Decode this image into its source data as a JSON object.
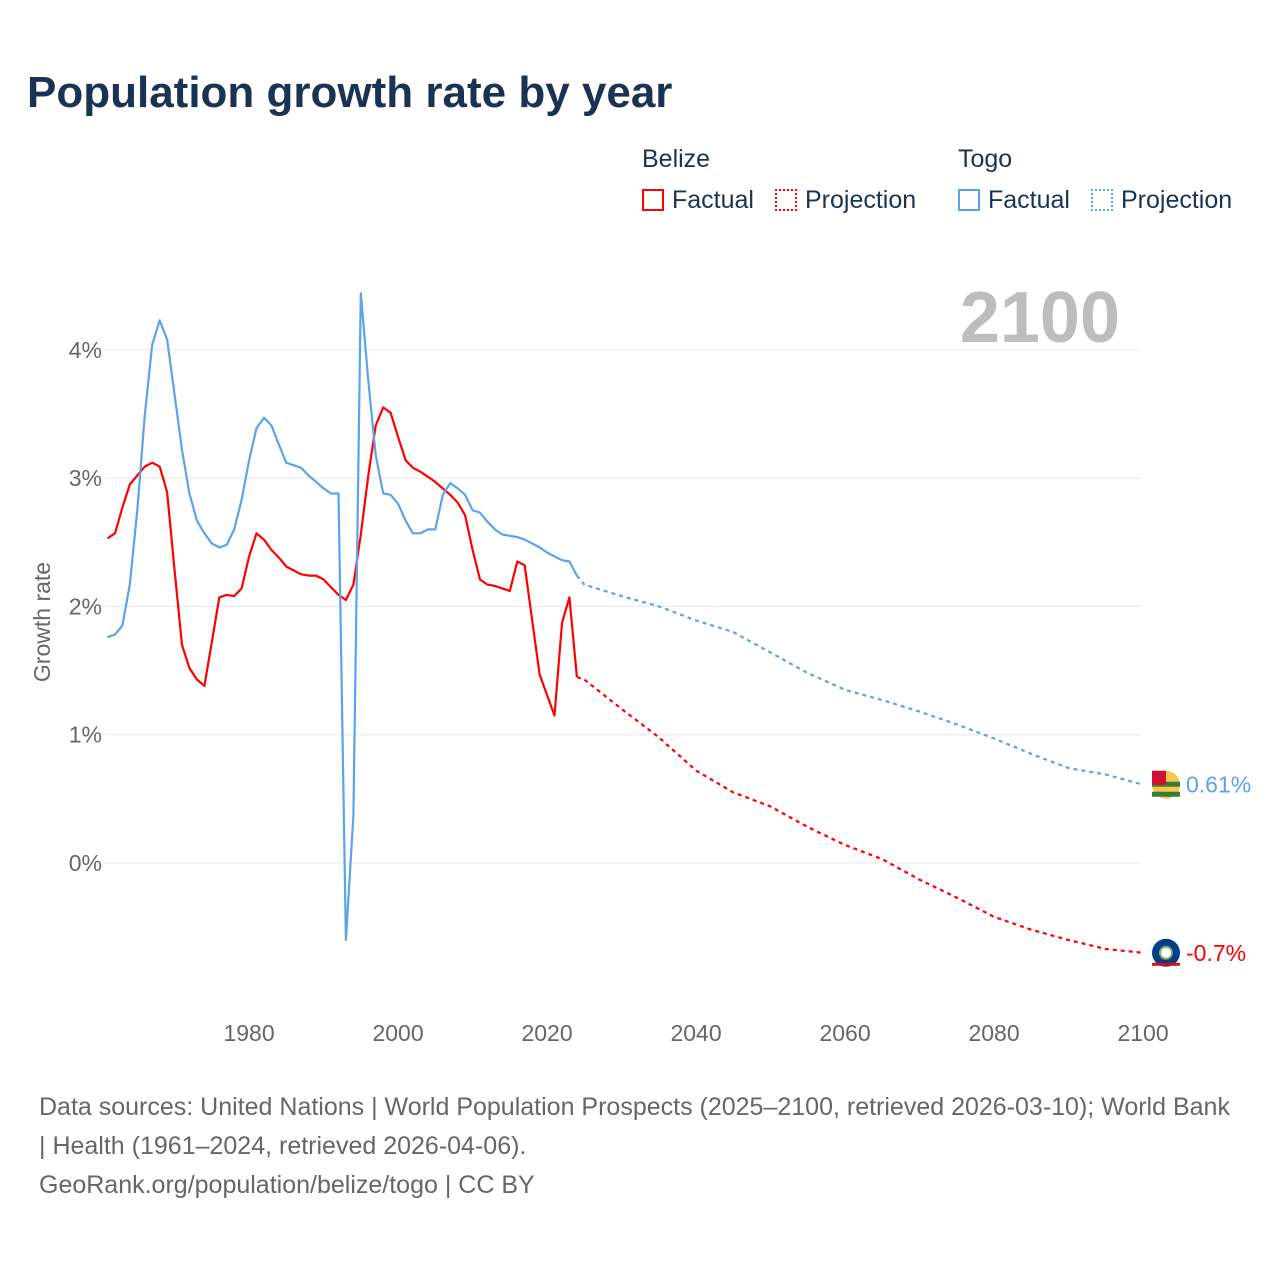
{
  "title": "Population growth rate by year",
  "legend": {
    "groups": [
      {
        "name": "Belize",
        "color": "#ff0000",
        "factual": "Factual",
        "projection": "Projection"
      },
      {
        "name": "Togo",
        "color": "#5ba4e8",
        "factual": "Factual",
        "projection": "Projection"
      }
    ]
  },
  "year_label": "2100",
  "end_labels": {
    "togo": "0.61%",
    "belize": "-0.7%"
  },
  "flags": {
    "togo": "togo-flag-icon",
    "belize": "belize-flag-icon"
  },
  "source": {
    "line1": "Data sources: United Nations | World Population Prospects (2025–2100, retrieved 2026-03-10); World Bank | Health (1961–2024, retrieved 2026-04-06).",
    "line2": "GeoRank.org/population/belize/togo | CC BY"
  },
  "chart_data": {
    "type": "line",
    "title": "Population growth rate by year",
    "xlabel": "",
    "ylabel": "Growth rate",
    "xlim": [
      1961,
      2100
    ],
    "ylim": [
      -0.9,
      4.6
    ],
    "xticks": [
      "1980",
      "2000",
      "2020",
      "2040",
      "2060",
      "2080",
      "2100"
    ],
    "yticks": [
      "0%",
      "1%",
      "2%",
      "3%",
      "4%"
    ],
    "series": [
      {
        "name": "Belize Factual",
        "color": "#ff0000",
        "dashed": false,
        "start": 1961,
        "values": [
          2.53,
          2.57,
          2.77,
          2.95,
          3.02,
          3.09,
          3.12,
          3.09,
          2.89,
          2.28,
          1.7,
          1.52,
          1.43,
          1.38,
          1.72,
          2.07,
          2.09,
          2.08,
          2.14,
          2.39,
          2.57,
          2.52,
          2.44,
          2.38,
          2.31,
          2.28,
          2.25,
          2.24,
          2.24,
          2.21,
          2.15,
          2.09,
          2.05,
          2.17,
          2.56,
          3.02,
          3.41,
          3.55,
          3.51,
          3.32,
          3.14,
          3.08,
          3.05,
          3.01,
          2.97,
          2.92,
          2.87,
          2.81,
          2.71,
          2.44,
          2.21,
          2.17,
          2.16,
          2.14,
          2.12,
          2.35,
          2.32,
          1.89,
          1.47,
          1.31,
          1.15,
          1.87,
          2.07,
          1.45
        ]
      },
      {
        "name": "Belize Projection",
        "color": "#ff0000",
        "dashed": true,
        "x": [
          2024,
          2025,
          2030,
          2035,
          2040,
          2045,
          2050,
          2055,
          2060,
          2065,
          2070,
          2075,
          2080,
          2085,
          2090,
          2095,
          2100
        ],
        "values": [
          1.45,
          1.43,
          1.2,
          0.98,
          0.72,
          0.55,
          0.44,
          0.28,
          0.14,
          0.03,
          -0.13,
          -0.27,
          -0.42,
          -0.52,
          -0.6,
          -0.67,
          -0.7
        ]
      },
      {
        "name": "Togo Factual",
        "color": "#5ba4e8",
        "dashed": false,
        "start": 1961,
        "values": [
          1.76,
          1.78,
          1.85,
          2.17,
          2.75,
          3.49,
          4.04,
          4.23,
          4.08,
          3.65,
          3.22,
          2.88,
          2.67,
          2.57,
          2.49,
          2.46,
          2.48,
          2.6,
          2.83,
          3.14,
          3.39,
          3.47,
          3.41,
          3.26,
          3.12,
          3.1,
          3.08,
          3.02,
          2.97,
          2.92,
          2.88,
          2.88,
          -0.6,
          0.37,
          4.44,
          3.76,
          3.18,
          2.88,
          2.87,
          2.8,
          2.67,
          2.57,
          2.57,
          2.6,
          2.6,
          2.87,
          2.96,
          2.92,
          2.87,
          2.75,
          2.73,
          2.66,
          2.6,
          2.56,
          2.55,
          2.54,
          2.52,
          2.49,
          2.46,
          2.42,
          2.39,
          2.36,
          2.35,
          2.24
        ]
      },
      {
        "name": "Togo Projection",
        "color": "#5ba4e8",
        "dashed": true,
        "x": [
          2024,
          2025,
          2030,
          2035,
          2040,
          2045,
          2050,
          2055,
          2060,
          2065,
          2070,
          2075,
          2080,
          2085,
          2090,
          2095,
          2100
        ],
        "values": [
          2.24,
          2.17,
          2.08,
          2.0,
          1.89,
          1.8,
          1.64,
          1.48,
          1.35,
          1.27,
          1.18,
          1.08,
          0.97,
          0.85,
          0.74,
          0.69,
          0.61
        ]
      }
    ],
    "legend_position": "top-right"
  }
}
